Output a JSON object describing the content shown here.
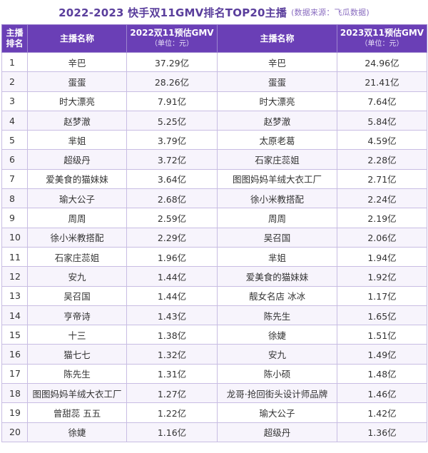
{
  "title": "2022-2023 快手双11GMV排名TOP20主播",
  "source": "(数据来源：飞瓜数据)",
  "headers": {
    "rank": "主播排名",
    "name_2022": "主播名称",
    "gmv_2022": "2022双11预估GMV",
    "unit_2022": "（单位：元）",
    "name_2023": "主播名称",
    "gmv_2023": "2023双11预估GMV",
    "unit_2023": "（单位：元）"
  },
  "rows": [
    {
      "rank": "1",
      "name_2022": "辛巴",
      "gmv_2022": "37.29亿",
      "name_2023": "辛巴",
      "gmv_2023": "24.96亿"
    },
    {
      "rank": "2",
      "name_2022": "蛋蛋",
      "gmv_2022": "28.26亿",
      "name_2023": "蛋蛋",
      "gmv_2023": "21.41亿"
    },
    {
      "rank": "3",
      "name_2022": "时大漂亮",
      "gmv_2022": "7.91亿",
      "name_2023": "时大漂亮",
      "gmv_2023": "7.64亿"
    },
    {
      "rank": "4",
      "name_2022": "赵梦澈",
      "gmv_2022": "5.25亿",
      "name_2023": "赵梦澈",
      "gmv_2023": "5.84亿"
    },
    {
      "rank": "5",
      "name_2022": "芈姐",
      "gmv_2022": "3.79亿",
      "name_2023": "太原老葛",
      "gmv_2023": "4.59亿"
    },
    {
      "rank": "6",
      "name_2022": "超级丹",
      "gmv_2022": "3.72亿",
      "name_2023": "石家庄蕊姐",
      "gmv_2023": "2.28亿"
    },
    {
      "rank": "7",
      "name_2022": "爱美食的猫妹妹",
      "gmv_2022": "3.64亿",
      "name_2023": "图图妈妈羊绒大衣工厂",
      "gmv_2023": "2.71亿"
    },
    {
      "rank": "8",
      "name_2022": "瑜大公子",
      "gmv_2022": "2.68亿",
      "name_2023": "徐小米教搭配",
      "gmv_2023": "2.24亿"
    },
    {
      "rank": "9",
      "name_2022": "周周",
      "gmv_2022": "2.59亿",
      "name_2023": "周周",
      "gmv_2023": "2.19亿"
    },
    {
      "rank": "10",
      "name_2022": "徐小米教搭配",
      "gmv_2022": "2.29亿",
      "name_2023": "吴召国",
      "gmv_2023": "2.06亿"
    },
    {
      "rank": "11",
      "name_2022": "石家庄蕊姐",
      "gmv_2022": "1.96亿",
      "name_2023": "芈姐",
      "gmv_2023": "1.94亿"
    },
    {
      "rank": "12",
      "name_2022": "安九",
      "gmv_2022": "1.44亿",
      "name_2023": "爱美食的猫妹妹",
      "gmv_2023": "1.92亿"
    },
    {
      "rank": "13",
      "name_2022": "吴召国",
      "gmv_2022": "1.44亿",
      "name_2023": "靓女名店 冰冰",
      "gmv_2023": "1.17亿"
    },
    {
      "rank": "14",
      "name_2022": "亨帝诗",
      "gmv_2022": "1.43亿",
      "name_2023": "陈先生",
      "gmv_2023": "1.65亿"
    },
    {
      "rank": "15",
      "name_2022": "十三",
      "gmv_2022": "1.38亿",
      "name_2023": "徐婕",
      "gmv_2023": "1.51亿"
    },
    {
      "rank": "16",
      "name_2022": "猫七七",
      "gmv_2022": "1.32亿",
      "name_2023": "安九",
      "gmv_2023": "1.49亿"
    },
    {
      "rank": "17",
      "name_2022": "陈先生",
      "gmv_2022": "1.31亿",
      "name_2023": "陈小硕",
      "gmv_2023": "1.48亿"
    },
    {
      "rank": "18",
      "name_2022": "图图妈妈羊绒大衣工厂",
      "gmv_2022": "1.27亿",
      "name_2023": "龙哥·抢回街头设计师品牌",
      "gmv_2023": "1.46亿"
    },
    {
      "rank": "19",
      "name_2022": "曾甜蕊 五五",
      "gmv_2022": "1.22亿",
      "name_2023": "瑜大公子",
      "gmv_2023": "1.42亿"
    },
    {
      "rank": "20",
      "name_2022": "徐婕",
      "gmv_2022": "1.16亿",
      "name_2023": "超级丹",
      "gmv_2023": "1.36亿"
    }
  ],
  "colors": {
    "header_bg": "#6a3fb6",
    "title_text": "#5a3e9c",
    "border": "#c8bde3"
  }
}
